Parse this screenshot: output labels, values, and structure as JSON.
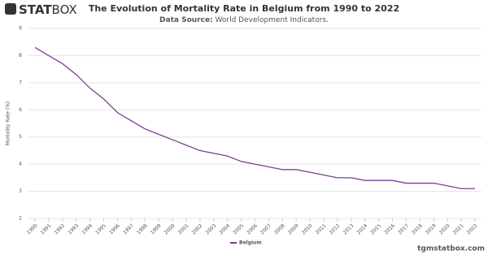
{
  "logo_bold": "STAT",
  "logo_light": "BOX",
  "source_label": "Data Source:",
  "source": "World Development Indicators.",
  "footer": "tgmstatbox.com",
  "chart_data": {
    "type": "line",
    "title": "The Evolution of Mortality Rate in Belgium from 1990 to 2022",
    "y_label": "Mortality Rate (%)",
    "categories": [
      "1990",
      "1991",
      "1992",
      "1993",
      "1994",
      "1995",
      "1996",
      "1997",
      "1998",
      "1999",
      "2000",
      "2001",
      "2002",
      "2003",
      "2004",
      "2005",
      "2006",
      "2007",
      "2008",
      "2009",
      "2010",
      "2011",
      "2012",
      "2013",
      "2014",
      "2015",
      "2016",
      "2017",
      "2018",
      "2019",
      "2020",
      "2021",
      "2022"
    ],
    "series": [
      {
        "name": "Belgium",
        "color": "#7b3f8c",
        "values": [
          8.3,
          8.0,
          7.7,
          7.3,
          6.8,
          6.4,
          5.9,
          5.6,
          5.3,
          5.1,
          4.9,
          4.7,
          4.5,
          4.4,
          4.3,
          4.1,
          4.0,
          3.9,
          3.8,
          3.8,
          3.7,
          3.6,
          3.5,
          3.5,
          3.4,
          3.4,
          3.4,
          3.3,
          3.3,
          3.3,
          3.2,
          3.1,
          3.1
        ]
      }
    ],
    "ylim": [
      2,
      9
    ],
    "yticks": [
      2,
      3,
      4,
      5,
      6,
      7,
      8,
      9
    ],
    "grid": true,
    "legend": "bottom"
  }
}
